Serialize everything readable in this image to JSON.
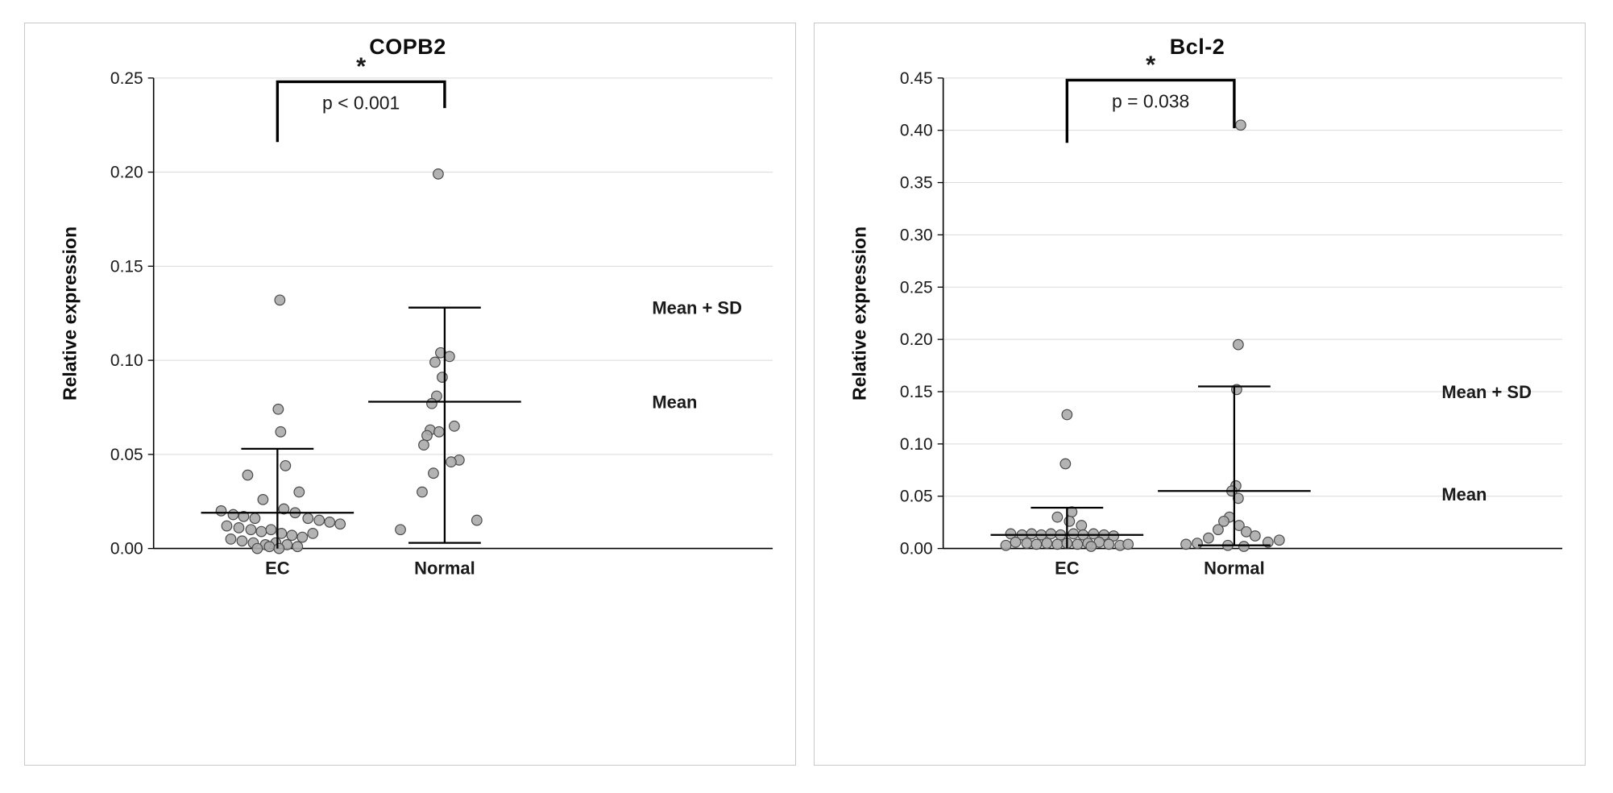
{
  "page": {
    "background": "#ffffff",
    "panel_border": "#c9c9c9"
  },
  "colors": {
    "point_fill": "#ababab",
    "point_stroke": "#4a4a4a",
    "gridline": "#d9d9d9",
    "axis": "#000000",
    "text": "#1a1a1a"
  },
  "chart_data": [
    {
      "type": "scatter",
      "title": "COPB2",
      "ylabel": "Relative expression",
      "ylim": [
        0,
        0.25
      ],
      "ytick_step": 0.05,
      "ytick_decimals": 2,
      "grid": true,
      "legend": "none",
      "categories": [
        "EC",
        "Normal"
      ],
      "significance": {
        "star": "*",
        "p_label": "p < 0.001",
        "y_top": 0.248,
        "left_drop": 0.216,
        "right_drop": 0.234
      },
      "annotations": [
        {
          "text": "Mean + SD",
          "y": 0.128
        },
        {
          "text": "Mean",
          "y": 0.078
        }
      ],
      "groups": [
        {
          "name": "EC",
          "mean": 0.019,
          "sd_top": 0.053,
          "sd_bottom": 0.0,
          "points": [
            [
              3,
              0.132
            ],
            [
              1,
              0.074
            ],
            [
              4,
              0.062
            ],
            [
              10,
              0.044
            ],
            [
              -37,
              0.039
            ],
            [
              27,
              0.03
            ],
            [
              -18,
              0.026
            ],
            [
              8,
              0.021
            ],
            [
              -70,
              0.02
            ],
            [
              -55,
              0.018
            ],
            [
              -42,
              0.017
            ],
            [
              -28,
              0.016
            ],
            [
              22,
              0.019
            ],
            [
              38,
              0.016
            ],
            [
              52,
              0.015
            ],
            [
              65,
              0.014
            ],
            [
              78,
              0.013
            ],
            [
              -63,
              0.012
            ],
            [
              -48,
              0.011
            ],
            [
              -33,
              0.01
            ],
            [
              -20,
              0.009
            ],
            [
              -8,
              0.01
            ],
            [
              5,
              0.008
            ],
            [
              18,
              0.007
            ],
            [
              31,
              0.006
            ],
            [
              44,
              0.008
            ],
            [
              -58,
              0.005
            ],
            [
              -44,
              0.004
            ],
            [
              -30,
              0.003
            ],
            [
              -15,
              0.002
            ],
            [
              -2,
              0.003
            ],
            [
              12,
              0.002
            ],
            [
              25,
              0.001
            ],
            [
              -10,
              0.001
            ],
            [
              2,
              0.0
            ],
            [
              -25,
              0.0
            ]
          ]
        },
        {
          "name": "Normal",
          "mean": 0.078,
          "sd_top": 0.128,
          "sd_bottom": 0.003,
          "points": [
            [
              -8,
              0.199
            ],
            [
              -5,
              0.104
            ],
            [
              6,
              0.102
            ],
            [
              -12,
              0.099
            ],
            [
              -3,
              0.091
            ],
            [
              -10,
              0.081
            ],
            [
              -16,
              0.077
            ],
            [
              12,
              0.065
            ],
            [
              -18,
              0.063
            ],
            [
              -7,
              0.062
            ],
            [
              -22,
              0.06
            ],
            [
              -26,
              0.055
            ],
            [
              18,
              0.047
            ],
            [
              8,
              0.046
            ],
            [
              -14,
              0.04
            ],
            [
              -28,
              0.03
            ],
            [
              40,
              0.015
            ],
            [
              -55,
              0.01
            ]
          ]
        }
      ]
    },
    {
      "type": "scatter",
      "title": "Bcl-2",
      "ylabel": "Relative expression",
      "ylim": [
        0,
        0.45
      ],
      "ytick_step": 0.05,
      "ytick_decimals": 2,
      "grid": true,
      "legend": "none",
      "categories": [
        "EC",
        "Normal"
      ],
      "significance": {
        "star": "*",
        "p_label": "p = 0.038",
        "y_top": 0.448,
        "left_drop": 0.388,
        "right_drop": 0.402
      },
      "annotations": [
        {
          "text": "Mean + SD",
          "y": 0.15
        },
        {
          "text": "Mean",
          "y": 0.052
        }
      ],
      "groups": [
        {
          "name": "EC",
          "mean": 0.013,
          "sd_top": 0.039,
          "sd_bottom": 0.0,
          "points": [
            [
              0,
              0.128
            ],
            [
              -2,
              0.081
            ],
            [
              6,
              0.035
            ],
            [
              -12,
              0.03
            ],
            [
              3,
              0.026
            ],
            [
              18,
              0.022
            ],
            [
              -70,
              0.014
            ],
            [
              -56,
              0.013
            ],
            [
              -44,
              0.014
            ],
            [
              -32,
              0.013
            ],
            [
              -20,
              0.014
            ],
            [
              -8,
              0.013
            ],
            [
              8,
              0.014
            ],
            [
              20,
              0.013
            ],
            [
              33,
              0.014
            ],
            [
              46,
              0.013
            ],
            [
              58,
              0.012
            ],
            [
              -64,
              0.006
            ],
            [
              -50,
              0.005
            ],
            [
              -38,
              0.004
            ],
            [
              -25,
              0.005
            ],
            [
              -12,
              0.004
            ],
            [
              0,
              0.005
            ],
            [
              13,
              0.004
            ],
            [
              26,
              0.005
            ],
            [
              40,
              0.006
            ],
            [
              52,
              0.004
            ],
            [
              66,
              0.003
            ],
            [
              -76,
              0.003
            ],
            [
              30,
              0.002
            ],
            [
              76,
              0.004
            ]
          ]
        },
        {
          "name": "Normal",
          "mean": 0.055,
          "sd_top": 0.155,
          "sd_bottom": 0.003,
          "points": [
            [
              8,
              0.405
            ],
            [
              5,
              0.195
            ],
            [
              3,
              0.152
            ],
            [
              2,
              0.06
            ],
            [
              -3,
              0.055
            ],
            [
              5,
              0.048
            ],
            [
              -6,
              0.03
            ],
            [
              -13,
              0.026
            ],
            [
              6,
              0.022
            ],
            [
              -20,
              0.018
            ],
            [
              15,
              0.016
            ],
            [
              26,
              0.012
            ],
            [
              -32,
              0.01
            ],
            [
              -46,
              0.005
            ],
            [
              -60,
              0.004
            ],
            [
              42,
              0.006
            ],
            [
              56,
              0.008
            ],
            [
              -8,
              0.003
            ],
            [
              12,
              0.002
            ]
          ]
        }
      ]
    }
  ]
}
